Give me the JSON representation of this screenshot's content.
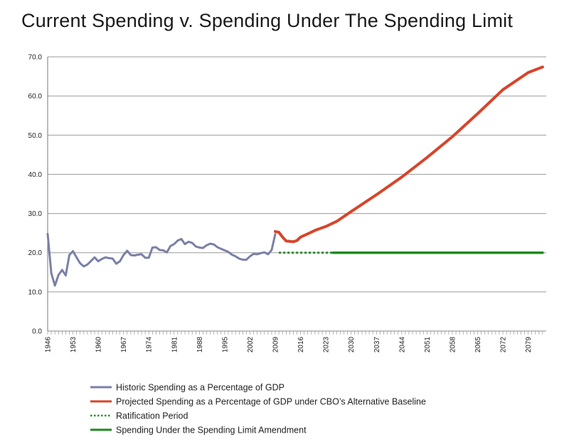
{
  "chart_data": {
    "type": "line",
    "title": "Current Spending v. Spending Under The Spending Limit",
    "ylim": [
      0,
      70
    ],
    "yticks": [
      "0.0",
      "10.0",
      "20.0",
      "30.0",
      "40.0",
      "50.0",
      "60.0",
      "70.0"
    ],
    "xlim": [
      1946,
      2084
    ],
    "xticks": [
      "1946",
      "1953",
      "1960",
      "1967",
      "1974",
      "1981",
      "1988",
      "1995",
      "2002",
      "2009",
      "2016",
      "2023",
      "2030",
      "2037",
      "2044",
      "2051",
      "2058",
      "2065",
      "2072",
      "2079"
    ],
    "grid": "horizontal",
    "legend_position": "bottom",
    "colors": {
      "historic": "#7b80a6",
      "projected": "#d8442a",
      "ratification": "#2a8f2a",
      "limit": "#1f8a1f"
    },
    "series": [
      {
        "name": "Historic Spending as a Percentage of GDP",
        "style": "solid",
        "points": [
          [
            1946,
            24.8
          ],
          [
            1947,
            14.8
          ],
          [
            1948,
            11.6
          ],
          [
            1949,
            14.3
          ],
          [
            1950,
            15.6
          ],
          [
            1951,
            14.2
          ],
          [
            1952,
            19.4
          ],
          [
            1953,
            20.4
          ],
          [
            1954,
            18.8
          ],
          [
            1955,
            17.3
          ],
          [
            1956,
            16.5
          ],
          [
            1957,
            17.0
          ],
          [
            1958,
            17.9
          ],
          [
            1959,
            18.8
          ],
          [
            1960,
            17.8
          ],
          [
            1961,
            18.4
          ],
          [
            1962,
            18.8
          ],
          [
            1963,
            18.6
          ],
          [
            1964,
            18.5
          ],
          [
            1965,
            17.2
          ],
          [
            1966,
            17.8
          ],
          [
            1967,
            19.4
          ],
          [
            1968,
            20.5
          ],
          [
            1969,
            19.4
          ],
          [
            1970,
            19.3
          ],
          [
            1971,
            19.5
          ],
          [
            1972,
            19.6
          ],
          [
            1973,
            18.7
          ],
          [
            1974,
            18.7
          ],
          [
            1975,
            21.3
          ],
          [
            1976,
            21.4
          ],
          [
            1977,
            20.7
          ],
          [
            1978,
            20.6
          ],
          [
            1979,
            20.1
          ],
          [
            1980,
            21.7
          ],
          [
            1981,
            22.2
          ],
          [
            1982,
            23.1
          ],
          [
            1983,
            23.5
          ],
          [
            1984,
            22.2
          ],
          [
            1985,
            22.8
          ],
          [
            1986,
            22.5
          ],
          [
            1987,
            21.6
          ],
          [
            1988,
            21.3
          ],
          [
            1989,
            21.2
          ],
          [
            1990,
            21.9
          ],
          [
            1991,
            22.3
          ],
          [
            1992,
            22.1
          ],
          [
            1993,
            21.4
          ],
          [
            1994,
            21.0
          ],
          [
            1995,
            20.6
          ],
          [
            1996,
            20.2
          ],
          [
            1997,
            19.5
          ],
          [
            1998,
            19.1
          ],
          [
            1999,
            18.5
          ],
          [
            2000,
            18.2
          ],
          [
            2001,
            18.2
          ],
          [
            2002,
            19.1
          ],
          [
            2003,
            19.7
          ],
          [
            2004,
            19.6
          ],
          [
            2005,
            19.9
          ],
          [
            2006,
            20.1
          ],
          [
            2007,
            19.6
          ],
          [
            2008,
            20.7
          ],
          [
            2009,
            24.7
          ]
        ]
      },
      {
        "name": "Projected Spending as a Percentage of GDP under CBO’s Alternative Baseline",
        "style": "solid",
        "points": [
          [
            2009,
            25.4
          ],
          [
            2010,
            25.2
          ],
          [
            2011,
            24.0
          ],
          [
            2012,
            23.0
          ],
          [
            2013,
            22.9
          ],
          [
            2014,
            22.8
          ],
          [
            2015,
            23.1
          ],
          [
            2016,
            24.0
          ],
          [
            2018,
            24.8
          ],
          [
            2020,
            25.7
          ],
          [
            2023,
            26.7
          ],
          [
            2026,
            28.0
          ],
          [
            2030,
            30.5
          ],
          [
            2037,
            34.8
          ],
          [
            2044,
            39.3
          ],
          [
            2051,
            44.3
          ],
          [
            2058,
            49.6
          ],
          [
            2065,
            55.5
          ],
          [
            2072,
            61.6
          ],
          [
            2079,
            66.0
          ],
          [
            2083,
            67.4
          ]
        ]
      },
      {
        "name": "Ratification Period",
        "style": "dotted",
        "points": [
          [
            2010,
            20.0
          ],
          [
            2025,
            20.0
          ]
        ]
      },
      {
        "name": "Spending Under the Spending Limit Amendment",
        "style": "solid",
        "points": [
          [
            2025,
            20.0
          ],
          [
            2083,
            20.0
          ]
        ]
      }
    ]
  }
}
